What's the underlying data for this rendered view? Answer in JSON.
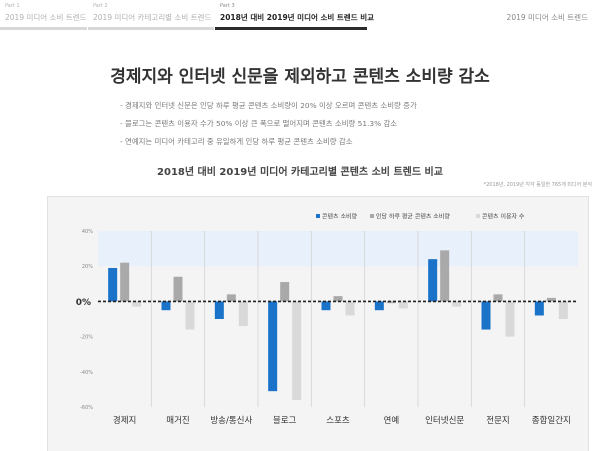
{
  "nav": {
    "tabs": [
      {
        "part": "Part 1",
        "label": "2019 미디어 소비 트렌드",
        "active": false
      },
      {
        "part": "Part 2",
        "label": "2019 미디어 카테고리별 소비 트렌드",
        "active": false
      },
      {
        "part": "Part 3",
        "label": "2018년 대비 2019년 미디어 소비 트렌드 비교",
        "active": true
      }
    ],
    "site_title": "2019 미디어 소비 트렌드"
  },
  "headline": "경제지와 인터넷 신문을 제외하고 콘텐츠 소비량 감소",
  "bullets": [
    "- 경제지와 인터넷 신문은 인당 하루 평균 콘텐츠 소비량이 20% 이상 오르며 콘텐츠 소비량 증가",
    "- 블로그는 콘텐츠 이용자 수가 50% 이상 큰 폭으로 떨어지며 콘텐츠 소비량 51.3% 감소",
    "- 연예지는 미디어 카테고리 중 유일하게 인당 하루 평균 콘텐츠 소비량 감소"
  ],
  "chart_note": "*2018년, 2019년 각각 동일한 765개 미디어 분석",
  "colors": {
    "series1": "#1a73c9",
    "series2": "#a9a9a9",
    "series3": "#d9d9d9",
    "band": "#e8f0fb"
  },
  "chart_data": {
    "type": "bar",
    "title": "2018년 대비 2019년 미디어 카테고리별 콘텐츠 소비 트렌드 비교",
    "categories": [
      "경제지",
      "매거진",
      "방송/통신사",
      "블로그",
      "스포츠",
      "연예",
      "인터넷신문",
      "전문지",
      "종합일간지"
    ],
    "series": [
      {
        "name": "콘텐츠 소비량",
        "values": [
          19,
          -5,
          -10,
          -51,
          -5,
          -5,
          24,
          -16,
          -8
        ]
      },
      {
        "name": "인당 하루 평균 콘텐츠 소비량",
        "values": [
          22,
          14,
          4,
          11,
          3,
          -1,
          29,
          4,
          2
        ]
      },
      {
        "name": "콘텐츠 이용자 수",
        "values": [
          -3,
          -16,
          -14,
          -56,
          -8,
          -4,
          -3,
          -20,
          -10
        ]
      }
    ],
    "ylim": [
      -60,
      40
    ],
    "yticks": [
      "40%",
      "20%",
      "0%",
      "-20%",
      "-40%",
      "-60%"
    ],
    "ytick_values": [
      40,
      20,
      0,
      -20,
      -40,
      -60
    ],
    "legend_position": "top-right",
    "grid": false
  }
}
